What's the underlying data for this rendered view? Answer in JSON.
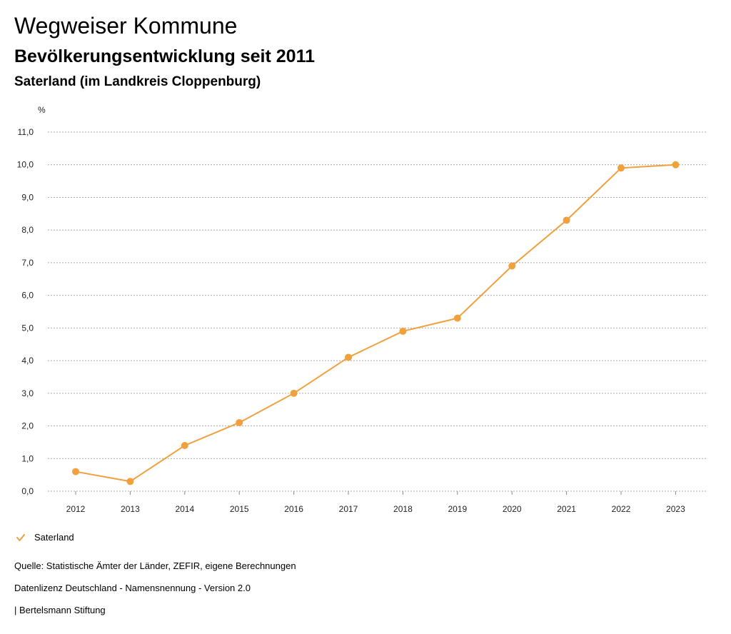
{
  "header": {
    "title": "Wegweiser Kommune",
    "subtitle": "Bevölkerungsentwicklung seit 2011",
    "region": "Saterland (im Landkreis Cloppenburg)"
  },
  "colors": {
    "series": "#f0a03c",
    "grid": "#aaaaaa"
  },
  "chart_data": {
    "type": "line",
    "ylabel": "%",
    "ylim": [
      0,
      11
    ],
    "yticks": [
      "0,0",
      "1,0",
      "2,0",
      "3,0",
      "4,0",
      "5,0",
      "6,0",
      "7,0",
      "8,0",
      "9,0",
      "10,0",
      "11,0"
    ],
    "grid": true,
    "categories": [
      "2012",
      "2013",
      "2014",
      "2015",
      "2016",
      "2017",
      "2018",
      "2019",
      "2020",
      "2021",
      "2022",
      "2023"
    ],
    "series": [
      {
        "name": "Saterland",
        "values": [
          0.6,
          0.3,
          1.4,
          2.1,
          3.0,
          4.1,
          4.9,
          5.3,
          6.9,
          8.3,
          9.9,
          10.0
        ]
      }
    ],
    "legend_position": "bottom-left"
  },
  "footer": {
    "source": "Quelle: Statistische Ämter der Länder, ZEFIR, eigene Berechnungen",
    "license": "Datenlizenz Deutschland - Namensnennung - Version 2.0",
    "publisher": "| Bertelsmann Stiftung"
  }
}
